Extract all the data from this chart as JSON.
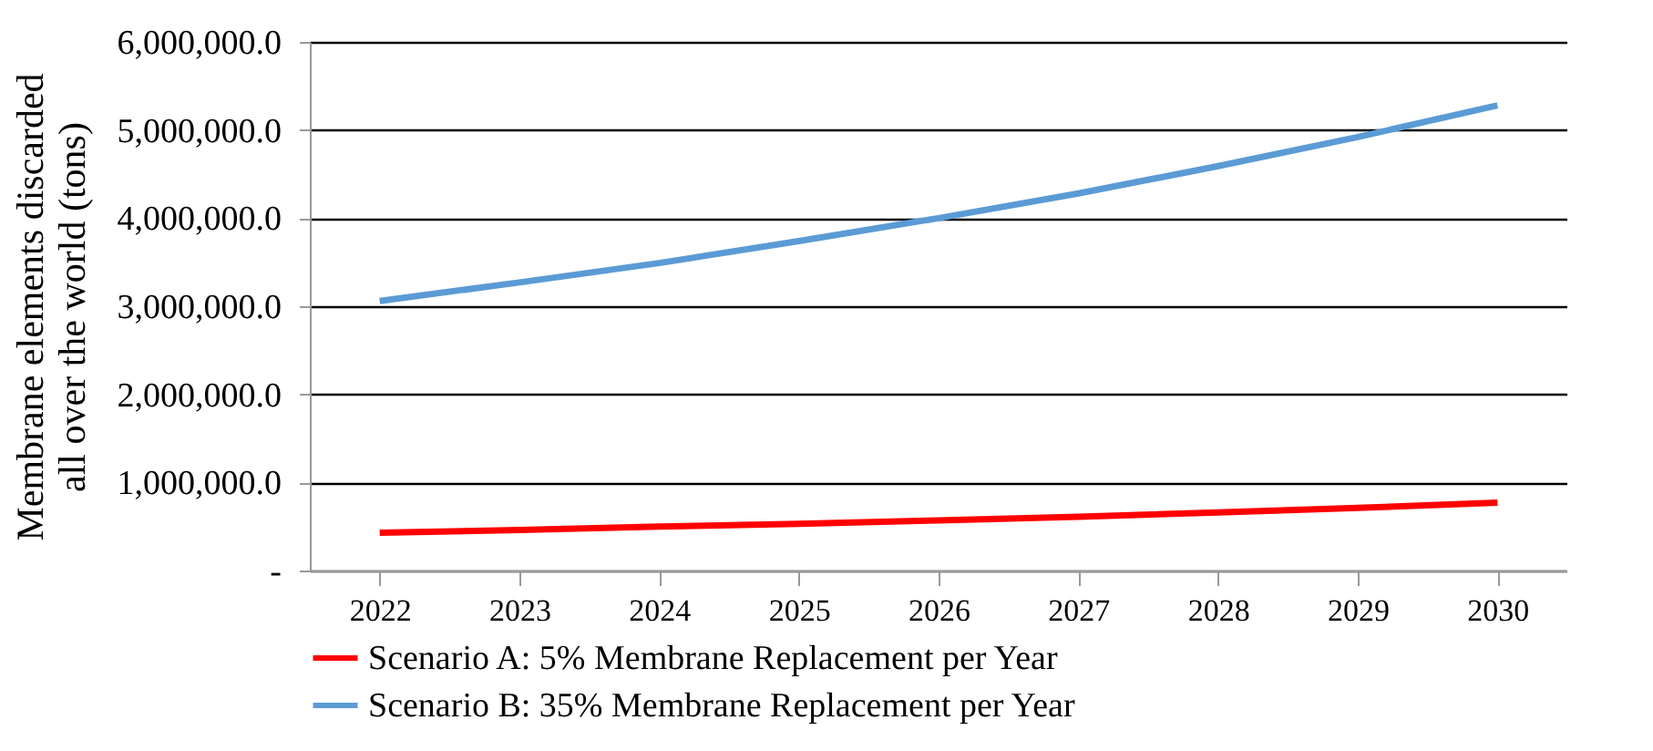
{
  "chart_data": {
    "type": "line",
    "ylabel": "Membrane elements discarded all over the world (tons)",
    "categories": [
      "2022",
      "2023",
      "2024",
      "2025",
      "2026",
      "2027",
      "2028",
      "2029",
      "2030"
    ],
    "series": [
      {
        "name": "Scenario A: 5% Membrane Replacement per Year",
        "color": "#ff0000",
        "values": [
          430000,
          460000,
          500000,
          530000,
          570000,
          610000,
          660000,
          710000,
          770000
        ]
      },
      {
        "name": "Scenario B: 35% Membrane Replacement per Year",
        "color": "#5b9bd5",
        "values": [
          3060000,
          3270000,
          3490000,
          3740000,
          4000000,
          4280000,
          4590000,
          4920000,
          5280000
        ]
      }
    ],
    "ylim": [
      0,
      6000000
    ],
    "yticks": [
      {
        "value": 0,
        "label": "-"
      },
      {
        "value": 1000000,
        "label": "1,000,000.0"
      },
      {
        "value": 2000000,
        "label": "2,000,000.0"
      },
      {
        "value": 3000000,
        "label": "3,000,000.0"
      },
      {
        "value": 4000000,
        "label": "4,000,000.0"
      },
      {
        "value": 5000000,
        "label": "5,000,000.0"
      },
      {
        "value": 6000000,
        "label": "6,000,000.0"
      }
    ],
    "grid": "y",
    "legend": "bottom",
    "marker": "none",
    "line_style": "solid"
  }
}
